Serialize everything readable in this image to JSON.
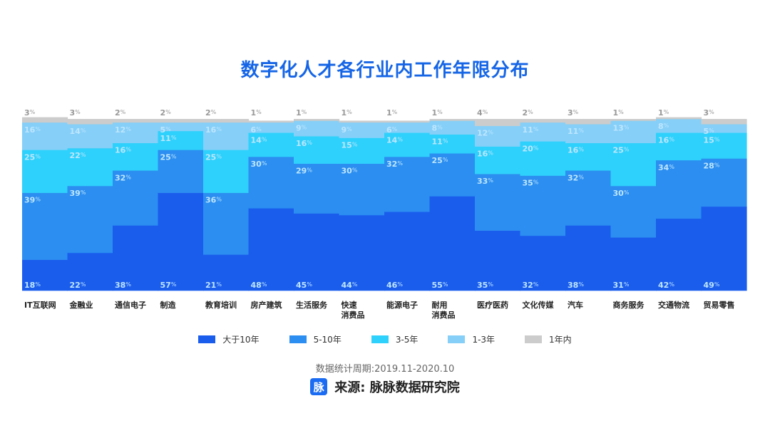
{
  "title": "数字化人才各行业内工作年限分布",
  "legend": [
    {
      "label": "大于10年",
      "color": "#1a5ded"
    },
    {
      "label": "5-10年",
      "color": "#2b8ef0"
    },
    {
      "label": "3-5年",
      "color": "#2ed1fb"
    },
    {
      "label": "1-3年",
      "color": "#85cff8"
    },
    {
      "label": "1年内",
      "color": "#cccccc"
    }
  ],
  "period": "数据统计周期:2019.11-2020.10",
  "source": {
    "logo_text": "脉",
    "text": "来源: 脉脉数据研究院"
  },
  "chart_data": {
    "type": "bar",
    "stacked": true,
    "categories": [
      "IT互联网",
      "金融业",
      "通信电子",
      "制造",
      "教育培训",
      "房产建筑",
      "生活服务",
      "快速\n消费品",
      "能源电子",
      "耐用\n消费品",
      "医疗医药",
      "文化传媒",
      "汽车",
      "商务服务",
      "交通物流",
      "贸易零售"
    ],
    "series": [
      {
        "name": "大于10年",
        "values": [
          18,
          22,
          38,
          57,
          21,
          48,
          45,
          44,
          46,
          55,
          35,
          32,
          38,
          31,
          42,
          49
        ]
      },
      {
        "name": "5-10年",
        "values": [
          39,
          39,
          32,
          25,
          36,
          30,
          29,
          30,
          32,
          25,
          33,
          35,
          32,
          30,
          34,
          28
        ]
      },
      {
        "name": "3-5年",
        "values": [
          25,
          22,
          16,
          11,
          25,
          14,
          16,
          15,
          14,
          11,
          16,
          20,
          16,
          25,
          16,
          15
        ]
      },
      {
        "name": "1-3年",
        "values": [
          16,
          14,
          12,
          5,
          16,
          6,
          9,
          9,
          6,
          8,
          12,
          11,
          11,
          13,
          8,
          5
        ]
      },
      {
        "name": "1年内",
        "values": [
          3,
          3,
          2,
          2,
          2,
          1,
          1,
          1,
          1,
          1,
          4,
          2,
          3,
          1,
          1,
          3
        ]
      }
    ],
    "value_suffix": "%",
    "ylim": [
      0,
      100
    ]
  }
}
